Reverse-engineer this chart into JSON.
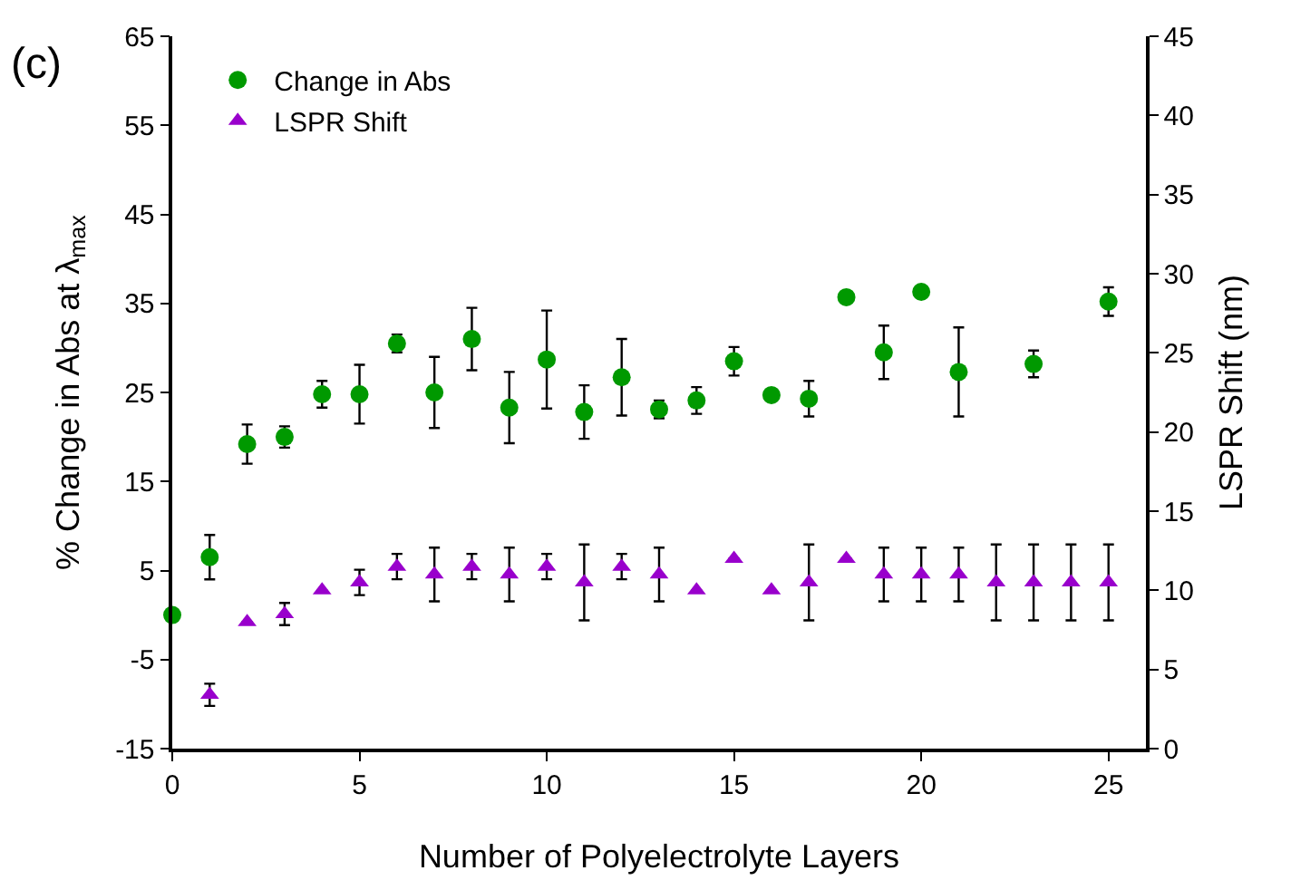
{
  "chart_data": {
    "type": "scatter",
    "xlabel": "Number of Polyelectrolyte Layers",
    "ylabel": "% Change in Abs at λ$_{max}$",
    "y2label": "LSPR Shift (nm)",
    "annotations": [
      "(c)"
    ],
    "xlim": [
      0,
      26
    ],
    "xticks": [
      0,
      5,
      10,
      15,
      20,
      25
    ],
    "ylim": [
      -15,
      65
    ],
    "yticks": [
      -15,
      -5,
      5,
      15,
      25,
      35,
      45,
      55,
      65
    ],
    "y2lim": [
      0,
      45
    ],
    "y2ticks": [
      0,
      5,
      10,
      15,
      20,
      25,
      30,
      35,
      40,
      45
    ],
    "legend": "top left",
    "series": [
      {
        "name": "Change in Abs",
        "color": "#009900",
        "marker": "circle",
        "x": [
          0,
          1,
          2,
          3,
          4,
          5,
          6,
          7,
          8,
          9,
          10,
          11,
          12,
          13,
          14,
          15,
          16,
          17,
          18,
          19,
          20,
          21,
          23,
          25
        ],
        "values": [
          0,
          6.5,
          19.2,
          20,
          24.8,
          24.8,
          30.5,
          25,
          31,
          23.3,
          28.7,
          22.8,
          26.7,
          23.1,
          24.1,
          28.5,
          24.7,
          24.3,
          35.7,
          29.5,
          36.3,
          27.3,
          28.2,
          35.2
        ],
        "errors": [
          null,
          2.5,
          2.2,
          1.2,
          1.5,
          3.3,
          1,
          4,
          3.5,
          4,
          5.5,
          3,
          4.3,
          1,
          1.5,
          1.6,
          null,
          2,
          null,
          3,
          null,
          5,
          1.5,
          1.6
        ]
      },
      {
        "name": "LSPR Shift",
        "color": "#9900cc",
        "marker": "triangle",
        "axis": "y2",
        "x": [
          1,
          2,
          3,
          4,
          5,
          6,
          7,
          8,
          9,
          10,
          11,
          12,
          13,
          14,
          15,
          16,
          17,
          18,
          19,
          20,
          21,
          22,
          23,
          24,
          25
        ],
        "values": [
          3.4,
          8,
          8.5,
          10,
          10.5,
          11.5,
          11,
          11.5,
          11,
          11.5,
          10.5,
          11.5,
          11,
          10,
          12,
          10,
          10.5,
          12,
          11,
          11,
          11,
          10.5,
          10.5,
          10.5,
          10.5
        ],
        "errors": [
          0.7,
          null,
          0.7,
          null,
          0.8,
          0.8,
          1.7,
          0.8,
          1.7,
          0.8,
          2.4,
          0.8,
          1.7,
          null,
          null,
          null,
          2.4,
          null,
          1.7,
          1.7,
          1.7,
          2.4,
          2.4,
          2.4,
          2.4
        ]
      }
    ]
  }
}
